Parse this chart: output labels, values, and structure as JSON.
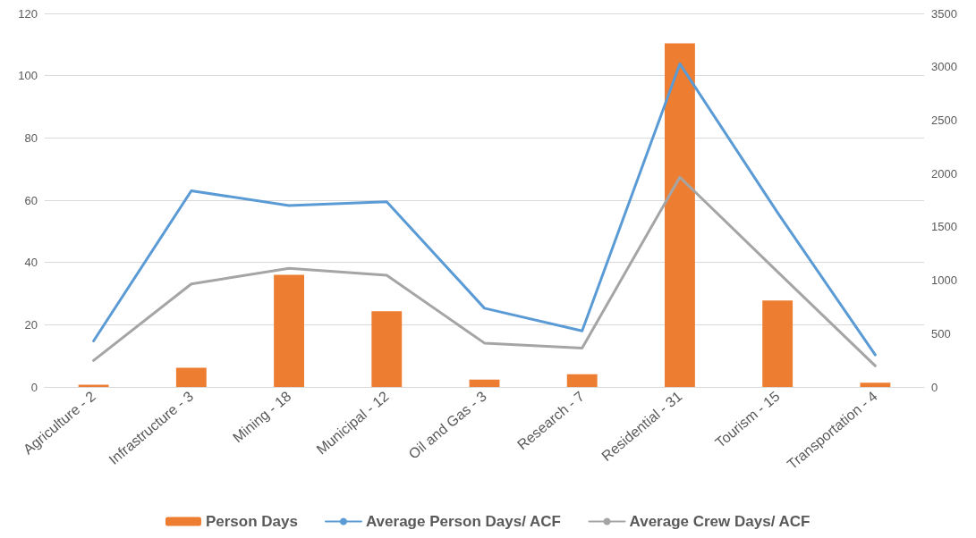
{
  "chart_data": {
    "type": "bar",
    "categories": [
      "Agriculture - 2",
      "Infrastructure - 3",
      "Mining - 18",
      "Municipal - 12",
      "Oil and Gas - 3",
      "Research - 7",
      "Residential - 31",
      "Tourism - 15",
      "Transportation - 4"
    ],
    "series": [
      {
        "name": "Person Days",
        "axis": "y2",
        "color": "#ed7d31",
        "values": [
          20,
          180,
          1050,
          710,
          70,
          120,
          3220,
          810,
          40
        ]
      },
      {
        "name": "Average Person Days/ ACF",
        "type": "line",
        "color": "#5b9bd5",
        "values": [
          14.8,
          63,
          58.3,
          59.5,
          25.3,
          18,
          103.8,
          56,
          10.3
        ]
      },
      {
        "name": "Average Crew Days/ ACF",
        "type": "line",
        "color": "#a5a5a5",
        "values": [
          8.5,
          33.1,
          38.1,
          35.9,
          14.1,
          12.5,
          67.4,
          37,
          6.8
        ]
      }
    ],
    "ylim": [
      0,
      120
    ],
    "yticks": [
      0,
      20,
      40,
      60,
      80,
      100,
      120
    ],
    "y2lim": [
      0,
      3500
    ],
    "y2ticks": [
      0,
      500,
      1000,
      1500,
      2000,
      2500,
      3000,
      3500
    ],
    "grid": true,
    "legend": "bottom",
    "marker": "none",
    "line_style": "solid"
  }
}
